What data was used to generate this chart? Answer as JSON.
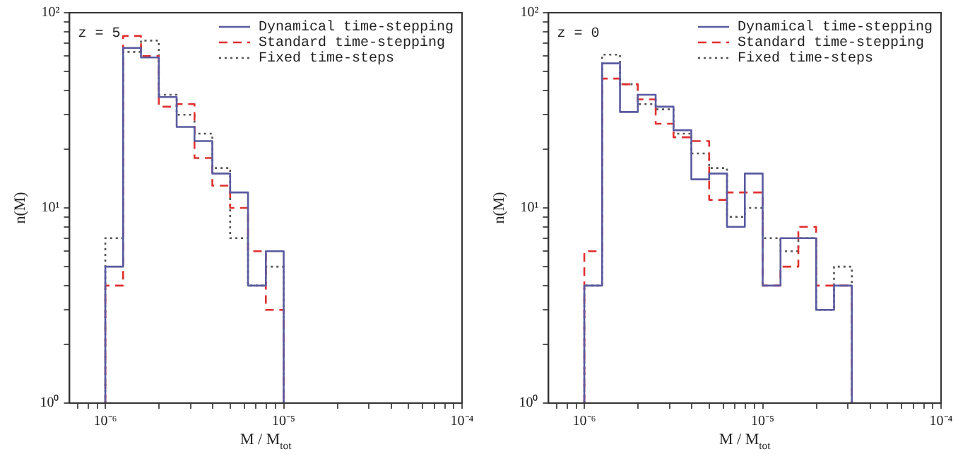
{
  "chart_data": [
    {
      "type": "histogram",
      "xlabel": "M / M$_{tot}$",
      "ylabel": "n(M)",
      "annotations": [
        "z = 5"
      ],
      "log": "xy",
      "legend": "top right",
      "bins": [
        1e-06,
        1.259e-06,
        1.585e-06,
        1.995e-06,
        2.512e-06,
        3.162e-06,
        3.981e-06,
        5.012e-06,
        6.31e-06,
        7.943e-06,
        1e-05
      ],
      "series": [
        {
          "name": "Dynamical time-stepping",
          "color": "#5a5aa0",
          "line_style": "solid",
          "values": [
            5,
            66,
            59,
            37,
            26,
            22,
            15,
            12,
            4,
            6
          ]
        },
        {
          "name": "Standard time-stepping",
          "color": "#e03030",
          "line_style": "dashed",
          "values": [
            4,
            76,
            60,
            33,
            34,
            18,
            13,
            10,
            6,
            3
          ]
        },
        {
          "name": "Fixed time-steps",
          "color": "#555555",
          "line_style": "dotted",
          "values": [
            7,
            63,
            72,
            38,
            30,
            24,
            16,
            7,
            4,
            5
          ]
        }
      ],
      "xlim": [
        6.3e-07,
        0.0001
      ],
      "ylim": [
        1,
        100
      ],
      "xticks": [
        {
          "value": 7e-07,
          "label": null
        },
        {
          "value": 8e-07,
          "label": null
        },
        {
          "value": 9e-07,
          "label": null
        },
        {
          "value": 1e-06,
          "label": "10⁻⁶"
        },
        {
          "value": 2e-06,
          "label": null
        },
        {
          "value": 3e-06,
          "label": null
        },
        {
          "value": 4e-06,
          "label": null
        },
        {
          "value": 5e-06,
          "label": null
        },
        {
          "value": 6e-06,
          "label": null
        },
        {
          "value": 7e-06,
          "label": null
        },
        {
          "value": 8e-06,
          "label": null
        },
        {
          "value": 9e-06,
          "label": null
        },
        {
          "value": 1e-05,
          "label": "10⁻⁵"
        },
        {
          "value": 2e-05,
          "label": null
        },
        {
          "value": 3e-05,
          "label": null
        },
        {
          "value": 4e-05,
          "label": null
        },
        {
          "value": 5e-05,
          "label": null
        },
        {
          "value": 6e-05,
          "label": null
        },
        {
          "value": 7e-05,
          "label": null
        },
        {
          "value": 8e-05,
          "label": null
        },
        {
          "value": 9e-05,
          "label": null
        },
        {
          "value": 0.0001,
          "label": "10⁻⁴"
        }
      ],
      "yticks": [
        {
          "value": 1,
          "label": "10⁰"
        },
        {
          "value": 2,
          "label": null
        },
        {
          "value": 3,
          "label": null
        },
        {
          "value": 4,
          "label": null
        },
        {
          "value": 5,
          "label": null
        },
        {
          "value": 6,
          "label": null
        },
        {
          "value": 7,
          "label": null
        },
        {
          "value": 8,
          "label": null
        },
        {
          "value": 9,
          "label": null
        },
        {
          "value": 10,
          "label": "10¹"
        },
        {
          "value": 20,
          "label": null
        },
        {
          "value": 30,
          "label": null
        },
        {
          "value": 40,
          "label": null
        },
        {
          "value": 50,
          "label": null
        },
        {
          "value": 60,
          "label": null
        },
        {
          "value": 70,
          "label": null
        },
        {
          "value": 80,
          "label": null
        },
        {
          "value": 90,
          "label": null
        },
        {
          "value": 100,
          "label": "10²"
        }
      ]
    },
    {
      "type": "histogram",
      "xlabel": "M / M$_{tot}$",
      "ylabel": "n(M)",
      "annotations": [
        "z = 0"
      ],
      "log": "xy",
      "legend": "top right",
      "bins": [
        1e-06,
        1.259e-06,
        1.585e-06,
        1.995e-06,
        2.512e-06,
        3.162e-06,
        3.981e-06,
        5.012e-06,
        6.31e-06,
        7.943e-06,
        1e-05,
        1.259e-05,
        1.585e-05,
        1.995e-05,
        2.512e-05,
        3.162e-05
      ],
      "series": [
        {
          "name": "Dynamical time-stepping",
          "color": "#5a5aa0",
          "line_style": "solid",
          "values": [
            4,
            55,
            31,
            38,
            33,
            25,
            14,
            15,
            8,
            15,
            4,
            7,
            7,
            3,
            4
          ]
        },
        {
          "name": "Standard time-stepping",
          "color": "#e03030",
          "line_style": "dashed",
          "values": [
            6,
            46,
            43,
            36,
            27,
            23,
            22,
            11,
            12,
            12,
            4,
            5,
            8,
            4,
            4
          ]
        },
        {
          "name": "Fixed time-steps",
          "color": "#555555",
          "line_style": "dotted",
          "values": [
            4,
            61,
            43,
            34,
            32,
            24,
            19,
            16,
            9,
            10,
            7,
            6,
            7,
            3,
            5
          ]
        }
      ],
      "xlim": [
        6.3e-07,
        0.0001
      ],
      "ylim": [
        1,
        100
      ],
      "xticks": [
        {
          "value": 7e-07,
          "label": null
        },
        {
          "value": 8e-07,
          "label": null
        },
        {
          "value": 9e-07,
          "label": null
        },
        {
          "value": 1e-06,
          "label": "10⁻⁶"
        },
        {
          "value": 2e-06,
          "label": null
        },
        {
          "value": 3e-06,
          "label": null
        },
        {
          "value": 4e-06,
          "label": null
        },
        {
          "value": 5e-06,
          "label": null
        },
        {
          "value": 6e-06,
          "label": null
        },
        {
          "value": 7e-06,
          "label": null
        },
        {
          "value": 8e-06,
          "label": null
        },
        {
          "value": 9e-06,
          "label": null
        },
        {
          "value": 1e-05,
          "label": "10⁻⁵"
        },
        {
          "value": 2e-05,
          "label": null
        },
        {
          "value": 3e-05,
          "label": null
        },
        {
          "value": 4e-05,
          "label": null
        },
        {
          "value": 5e-05,
          "label": null
        },
        {
          "value": 6e-05,
          "label": null
        },
        {
          "value": 7e-05,
          "label": null
        },
        {
          "value": 8e-05,
          "label": null
        },
        {
          "value": 9e-05,
          "label": null
        },
        {
          "value": 0.0001,
          "label": "10⁻⁴"
        }
      ],
      "yticks": [
        {
          "value": 1,
          "label": "10⁰"
        },
        {
          "value": 2,
          "label": null
        },
        {
          "value": 3,
          "label": null
        },
        {
          "value": 4,
          "label": null
        },
        {
          "value": 5,
          "label": null
        },
        {
          "value": 6,
          "label": null
        },
        {
          "value": 7,
          "label": null
        },
        {
          "value": 8,
          "label": null
        },
        {
          "value": 9,
          "label": null
        },
        {
          "value": 10,
          "label": "10¹"
        },
        {
          "value": 20,
          "label": null
        },
        {
          "value": 30,
          "label": null
        },
        {
          "value": 40,
          "label": null
        },
        {
          "value": 50,
          "label": null
        },
        {
          "value": 60,
          "label": null
        },
        {
          "value": 70,
          "label": null
        },
        {
          "value": 80,
          "label": null
        },
        {
          "value": 90,
          "label": null
        },
        {
          "value": 100,
          "label": "10²"
        }
      ]
    }
  ]
}
